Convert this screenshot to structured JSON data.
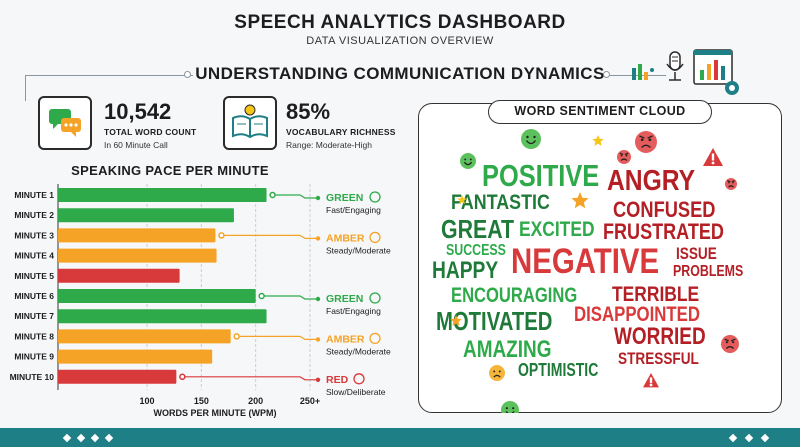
{
  "header": {
    "title": "SPEECH ANALYTICS DASHBOARD",
    "subtitle": "DATA VISUALIZATION OVERVIEW",
    "section_title": "UNDERSTANDING COMMUNICATION DYNAMICS"
  },
  "stats": [
    {
      "value": "10,542",
      "label": "TOTAL WORD COUNT",
      "sub": "In 60 Minute Call",
      "icon": "chat-bubbles-icon"
    },
    {
      "value": "85%",
      "label": "VOCABULARY RICHNESS",
      "sub": "Range: Moderate-High",
      "icon": "book-lightbulb-icon"
    }
  ],
  "colors": {
    "green": "#2eaa4a",
    "amber": "#f5a326",
    "red": "#d8393a",
    "dark_green": "#1f7a3a",
    "dark_red": "#b31f24",
    "teal": "#1f7f86"
  },
  "chart_data": {
    "type": "bar",
    "orientation": "horizontal",
    "title": "SPEAKING PACE PER MINUTE",
    "xlabel": "WORDS PER MINUTE (WPM)",
    "categories": [
      "MINUTE 1",
      "MINUTE 2",
      "MINUTE 3",
      "MINUTE 4",
      "MINUTE 5",
      "MINUTE 6",
      "MINUTE 7",
      "MINUTE 8",
      "MINUTE 9",
      "MINUTE 10"
    ],
    "values": [
      210,
      180,
      163,
      164,
      130,
      200,
      210,
      177,
      160,
      127
    ],
    "bar_colors": [
      "green",
      "green",
      "amber",
      "amber",
      "red",
      "green",
      "green",
      "amber",
      "amber",
      "red"
    ],
    "xlim": [
      0,
      250
    ],
    "xticks": [
      "100",
      "150",
      "200",
      "250+"
    ],
    "xtick_values": [
      100,
      150,
      200,
      250
    ],
    "grid": true,
    "annotations": [
      {
        "category": "MINUTE 1",
        "label": "GREEN",
        "desc": "Fast/Engaging",
        "color": "green",
        "icon": "rocket-icon"
      },
      {
        "category": "MINUTE 3",
        "label": "AMBER",
        "desc": "Steady/Moderate",
        "color": "amber",
        "icon": "clock-icon"
      },
      {
        "category": "MINUTE 6",
        "label": "GREEN",
        "desc": "Fast/Engaging",
        "color": "green",
        "icon": "stopwatch-icon"
      },
      {
        "category": "MINUTE 8",
        "label": "AMBER",
        "desc": "Steady/Moderate",
        "color": "amber",
        "icon": "bar-chart-icon"
      },
      {
        "category": "MINUTE 10",
        "label": "RED",
        "desc": "Slow/Deliberate",
        "color": "red",
        "icon": "turtle-icon"
      }
    ]
  },
  "cloud": {
    "title": "WORD SENTIMENT CLOUD",
    "words": [
      {
        "text": "POSITIVE",
        "tone": "green"
      },
      {
        "text": "FANTASTIC",
        "tone": "dark_green"
      },
      {
        "text": "GREAT",
        "tone": "dark_green"
      },
      {
        "text": "EXCITED",
        "tone": "green"
      },
      {
        "text": "SUCCESS",
        "tone": "green"
      },
      {
        "text": "HAPPY",
        "tone": "dark_green"
      },
      {
        "text": "ENCOURAGING",
        "tone": "green"
      },
      {
        "text": "MOTIVATED",
        "tone": "dark_green"
      },
      {
        "text": "AMAZING",
        "tone": "green"
      },
      {
        "text": "OPTIMISTIC",
        "tone": "dark_green"
      },
      {
        "text": "ANGRY",
        "tone": "dark_red"
      },
      {
        "text": "CONFUSED",
        "tone": "dark_red"
      },
      {
        "text": "FRUSTRATED",
        "tone": "dark_red"
      },
      {
        "text": "NEGATIVE",
        "tone": "red"
      },
      {
        "text": "ISSUE",
        "tone": "dark_red"
      },
      {
        "text": "PROBLEMS",
        "tone": "dark_red"
      },
      {
        "text": "TERRIBLE",
        "tone": "dark_red"
      },
      {
        "text": "DISAPPOINTED",
        "tone": "red"
      },
      {
        "text": "WORRIED",
        "tone": "dark_red"
      },
      {
        "text": "STRESSFUL",
        "tone": "dark_red"
      }
    ],
    "icons": [
      "smiley-face-icon",
      "angry-face-icon",
      "warning-icon",
      "star-icon",
      "sad-face-icon"
    ]
  }
}
